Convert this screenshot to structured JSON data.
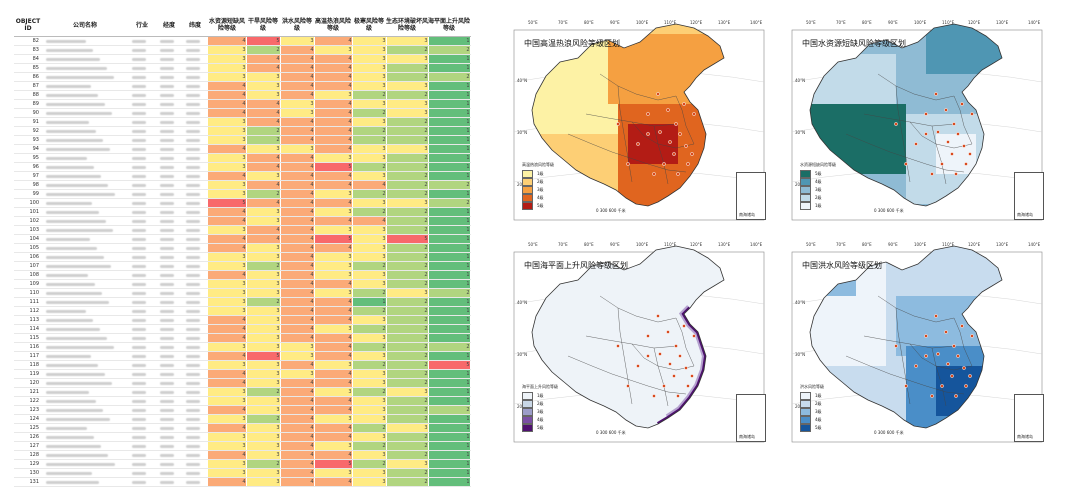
{
  "table": {
    "headers": [
      "OBJECT ID",
      "公司名称",
      "行业",
      "经度",
      "纬度",
      "水资源短缺风险等级",
      "干旱风险等级",
      "洪水风险等级",
      "高温热浪风险等级",
      "极寒风险等级",
      "生态环境破坏风险等级",
      "海平面上升风险等级"
    ],
    "ids": [
      "82",
      "83",
      "84",
      "85",
      "86",
      "87",
      "88",
      "89",
      "90",
      "91",
      "92",
      "93",
      "94",
      "95",
      "96",
      "97",
      "98",
      "99",
      "100",
      "101",
      "102",
      "103",
      "104",
      "105",
      "106",
      "107",
      "108",
      "109",
      "110",
      "111",
      "112",
      "113",
      "114",
      "115",
      "116",
      "117",
      "118",
      "119",
      "120",
      "121",
      "122",
      "123",
      "124",
      "125",
      "126",
      "127",
      "128",
      "129",
      "130",
      "131"
    ],
    "levels": [
      [
        4,
        5,
        3,
        4,
        3,
        3,
        1
      ],
      [
        3,
        2,
        4,
        3,
        3,
        2,
        2
      ],
      [
        3,
        4,
        4,
        4,
        3,
        3,
        1
      ],
      [
        3,
        4,
        4,
        4,
        3,
        2,
        1
      ],
      [
        3,
        3,
        4,
        4,
        3,
        2,
        2
      ],
      [
        4,
        3,
        4,
        4,
        3,
        3,
        1
      ],
      [
        4,
        3,
        4,
        3,
        2,
        2,
        1
      ],
      [
        4,
        4,
        3,
        4,
        3,
        3,
        1
      ],
      [
        4,
        4,
        3,
        4,
        2,
        3,
        1
      ],
      [
        3,
        4,
        4,
        4,
        3,
        2,
        1
      ],
      [
        3,
        2,
        4,
        4,
        2,
        2,
        1
      ],
      [
        3,
        2,
        4,
        4,
        2,
        2,
        1
      ],
      [
        4,
        3,
        3,
        4,
        3,
        3,
        1
      ],
      [
        3,
        4,
        4,
        3,
        3,
        2,
        1
      ],
      [
        3,
        4,
        4,
        5,
        2,
        2,
        1
      ],
      [
        4,
        3,
        4,
        4,
        3,
        2,
        1
      ],
      [
        3,
        4,
        4,
        4,
        4,
        2,
        2
      ],
      [
        3,
        2,
        4,
        3,
        2,
        2,
        1
      ],
      [
        5,
        4,
        4,
        4,
        3,
        3,
        2
      ],
      [
        4,
        3,
        4,
        3,
        2,
        2,
        1
      ],
      [
        4,
        3,
        4,
        4,
        4,
        2,
        1
      ],
      [
        3,
        4,
        4,
        3,
        3,
        2,
        1
      ],
      [
        4,
        4,
        4,
        5,
        3,
        5,
        1
      ],
      [
        4,
        3,
        4,
        4,
        3,
        2,
        1
      ],
      [
        3,
        3,
        4,
        3,
        3,
        2,
        1
      ],
      [
        3,
        2,
        4,
        3,
        2,
        2,
        1
      ],
      [
        4,
        3,
        4,
        3,
        3,
        2,
        1
      ],
      [
        3,
        3,
        4,
        4,
        3,
        2,
        1
      ],
      [
        3,
        3,
        4,
        3,
        2,
        3,
        2
      ],
      [
        3,
        2,
        4,
        4,
        1,
        2,
        1
      ],
      [
        3,
        3,
        4,
        4,
        2,
        2,
        1
      ],
      [
        4,
        3,
        4,
        4,
        3,
        2,
        1
      ],
      [
        4,
        3,
        4,
        3,
        2,
        2,
        1
      ],
      [
        4,
        3,
        4,
        4,
        3,
        2,
        1
      ],
      [
        3,
        3,
        3,
        4,
        2,
        2,
        2
      ],
      [
        4,
        5,
        3,
        4,
        3,
        2,
        1
      ],
      [
        3,
        3,
        4,
        3,
        2,
        2,
        5
      ],
      [
        4,
        3,
        3,
        4,
        3,
        2,
        1
      ],
      [
        4,
        3,
        4,
        4,
        3,
        2,
        1
      ],
      [
        3,
        2,
        4,
        3,
        2,
        3,
        1
      ],
      [
        3,
        3,
        4,
        4,
        3,
        2,
        1
      ],
      [
        4,
        3,
        4,
        4,
        3,
        2,
        2
      ],
      [
        3,
        2,
        4,
        3,
        3,
        2,
        1
      ],
      [
        4,
        3,
        4,
        4,
        2,
        3,
        1
      ],
      [
        3,
        3,
        4,
        4,
        3,
        2,
        1
      ],
      [
        3,
        3,
        4,
        3,
        2,
        2,
        1
      ],
      [
        4,
        3,
        4,
        4,
        3,
        2,
        1
      ],
      [
        3,
        2,
        4,
        5,
        2,
        3,
        1
      ],
      [
        3,
        3,
        4,
        3,
        3,
        2,
        1
      ],
      [
        4,
        3,
        4,
        4,
        3,
        2,
        1
      ]
    ]
  },
  "maps": {
    "lon_labels": [
      "50°E",
      "70°E",
      "80°E",
      "90°E",
      "100°E",
      "110°E",
      "120°E",
      "130°E",
      "140°E"
    ],
    "lat_labels": [
      "40°N",
      "30°N",
      "20°N"
    ],
    "inset_label": "南海诸岛",
    "scale_text": "0   300   600 千米",
    "panels": [
      {
        "title": "中国高温热浪风险等级区划",
        "legend_title": "高温热浪风险等级",
        "legend_items": [
          "1级",
          "2级",
          "3级",
          "4级",
          "5级"
        ],
        "colors": [
          "#fdf2a5",
          "#fdcf75",
          "#f5a041",
          "#e0651f",
          "#b31c15"
        ]
      },
      {
        "title": "中国水资源短缺风险等级区划",
        "legend_title": "水资源短缺风险等级",
        "legend_items": [
          "5级",
          "4级",
          "3级",
          "2级",
          "1级"
        ],
        "colors": [
          "#eef4fa",
          "#c2dbe9",
          "#8fbbd4",
          "#4f96b3",
          "#1b6e66"
        ]
      },
      {
        "title": "中国海平面上升风险等级区划",
        "legend_title": "海平面上升风险等级",
        "legend_items": [
          "1级",
          "2级",
          "3级",
          "4级",
          "5级"
        ],
        "colors": [
          "#eef3f8",
          "#c9d7e6",
          "#9c9dc9",
          "#7b4fa5",
          "#4f1170"
        ]
      },
      {
        "title": "中国洪水风险等级区划",
        "legend_title": "洪水风险等级",
        "legend_items": [
          "1级",
          "2级",
          "3级",
          "4级",
          "5级"
        ],
        "colors": [
          "#eef4fa",
          "#c8dcee",
          "#8dbbdf",
          "#4a8ec8",
          "#15559c"
        ]
      }
    ]
  }
}
